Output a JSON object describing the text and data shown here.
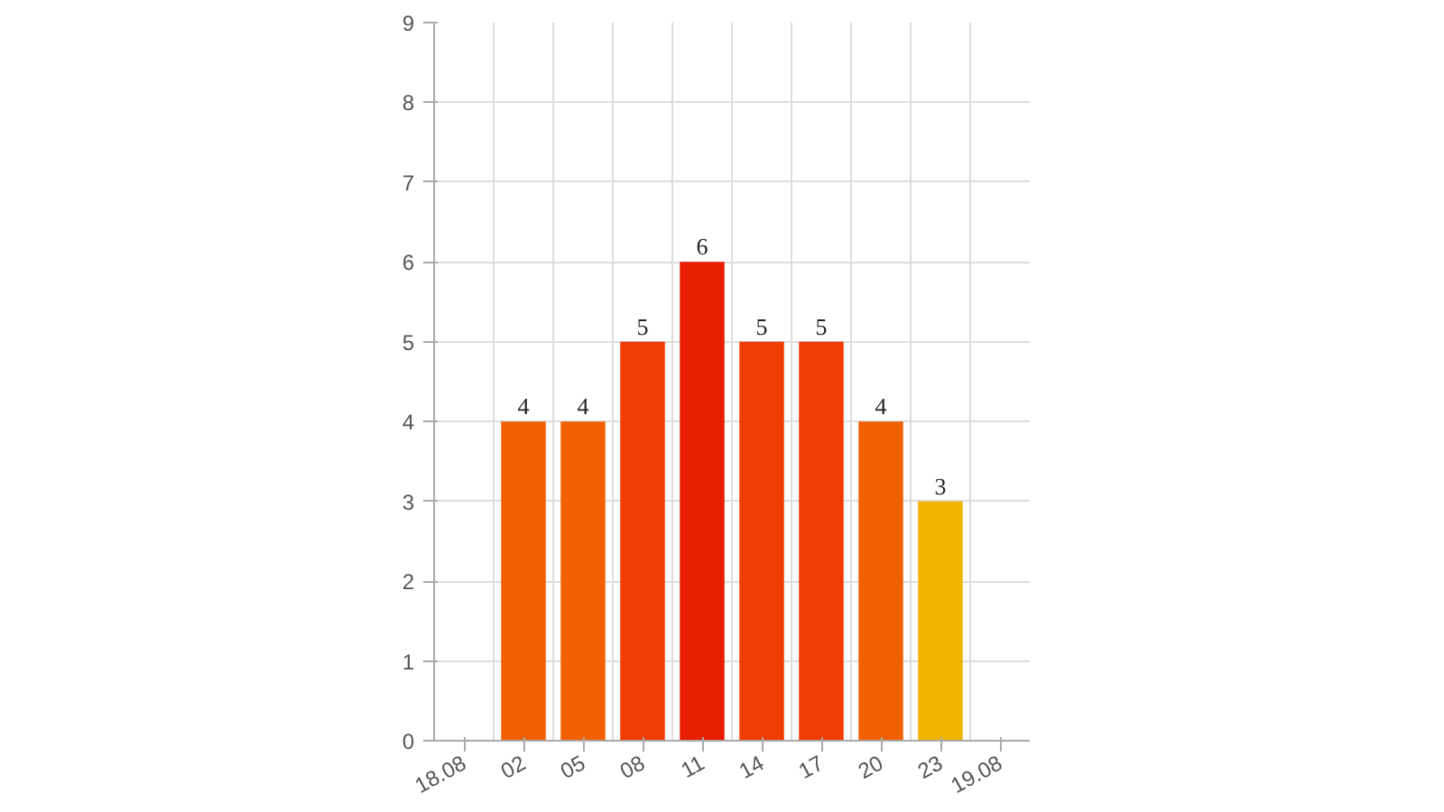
{
  "chart_data": {
    "type": "bar",
    "categories": [
      "18.08",
      "02",
      "05",
      "08",
      "11",
      "14",
      "17",
      "20",
      "23",
      "19.08"
    ],
    "values": [
      null,
      4,
      4,
      5,
      6,
      5,
      5,
      4,
      3,
      null
    ],
    "colors": [
      "#ffffff",
      "#f06000",
      "#f06000",
      "#f03c00",
      "#e81e00",
      "#f03c00",
      "#f03c00",
      "#f06000",
      "#f0b400",
      "#ffffff"
    ],
    "ylim": [
      0,
      9
    ],
    "yticks": [
      0,
      1,
      2,
      3,
      4,
      5,
      6,
      7,
      8,
      9
    ],
    "grid": true,
    "data_labels": true
  }
}
